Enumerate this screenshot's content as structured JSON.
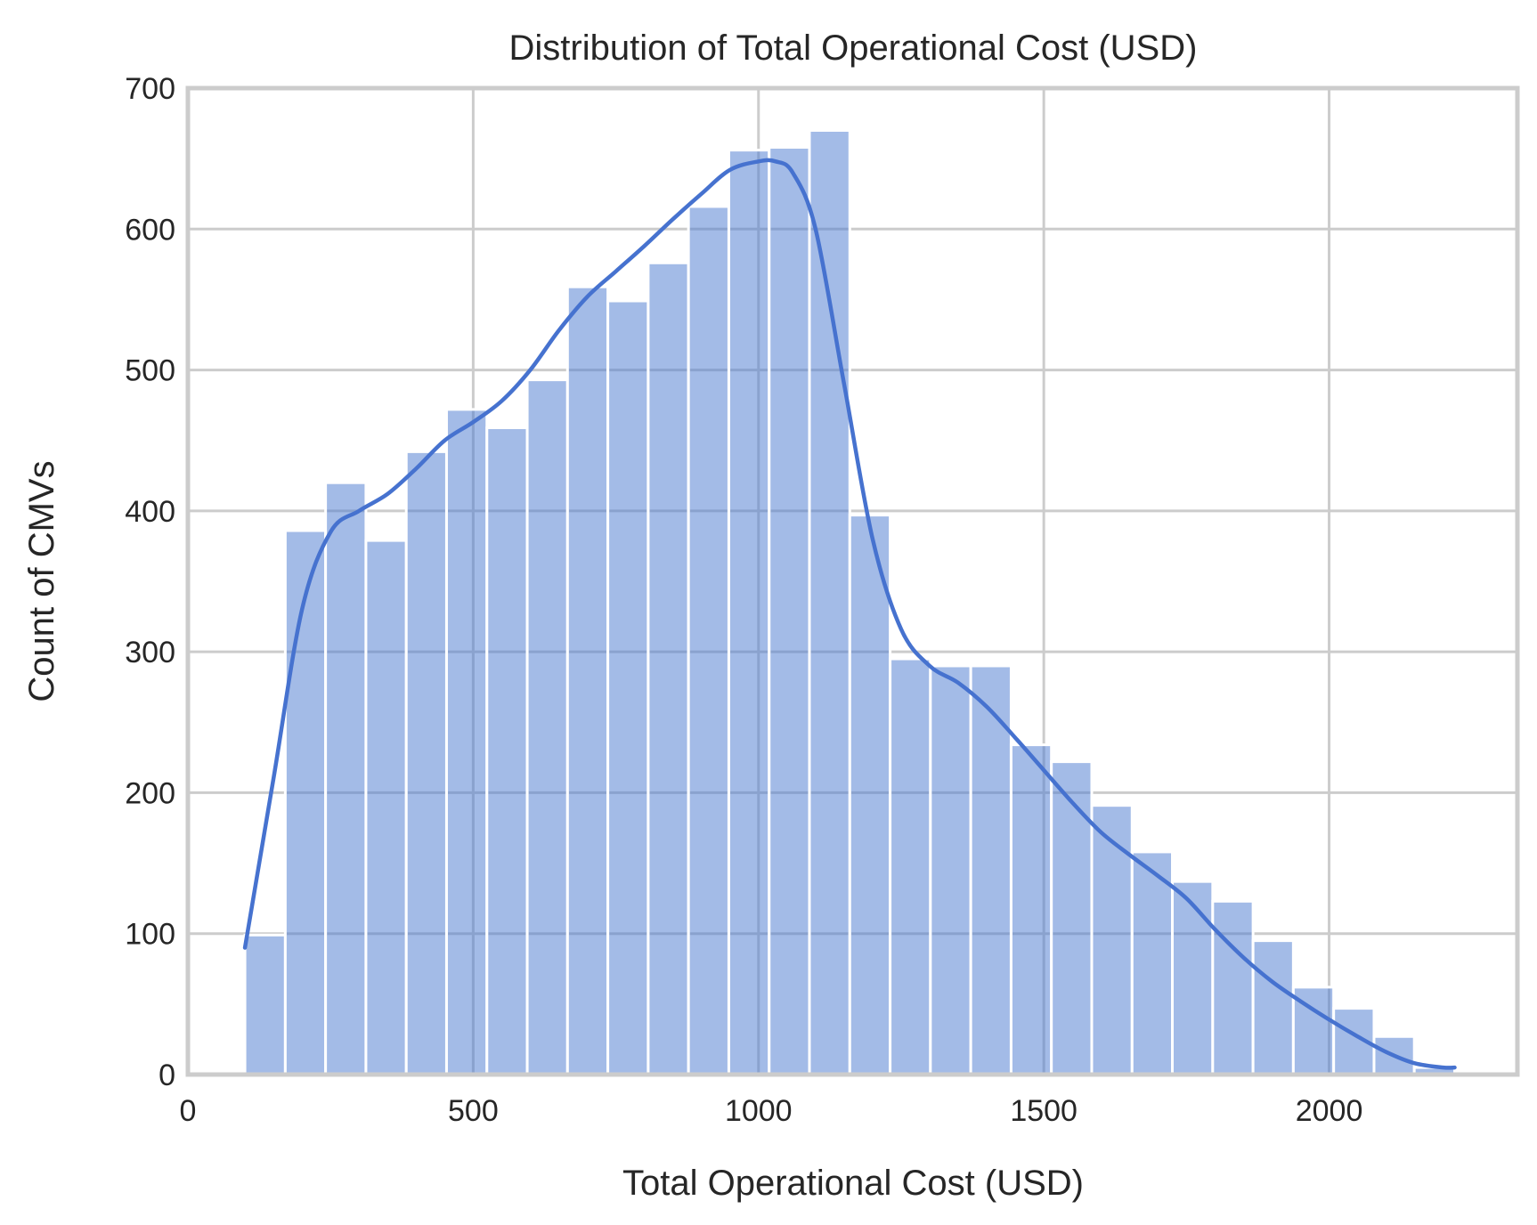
{
  "chart_data": {
    "type": "bar",
    "subtype": "histogram",
    "title": "Distribution of Total Operational Cost (USD)",
    "xlabel": "Total Operational Cost (USD)",
    "ylabel": "Count of CMVs",
    "xlim": [
      0,
      2330
    ],
    "ylim": [
      0,
      700
    ],
    "xticks": [
      0,
      500,
      1000,
      1500,
      2000
    ],
    "yticks": [
      0,
      100,
      200,
      300,
      400,
      500,
      600,
      700
    ],
    "grid": true,
    "bin_edges": [
      100,
      170.7,
      241.3,
      312,
      382.7,
      453.3,
      524,
      594.7,
      665.3,
      736,
      806.7,
      877.3,
      948,
      1018.7,
      1089.3,
      1160,
      1230.7,
      1301.3,
      1372,
      1442.7,
      1513.3,
      1584,
      1654.7,
      1725.3,
      1796,
      1866.7,
      1937.3,
      2008,
      2078.7,
      2149.3,
      2220
    ],
    "counts": [
      99,
      386,
      420,
      379,
      442,
      472,
      459,
      493,
      559,
      549,
      576,
      616,
      656,
      658,
      670,
      397,
      295,
      290,
      290,
      234,
      222,
      191,
      158,
      137,
      123,
      95,
      62,
      47,
      27,
      5
    ],
    "kde": {
      "x": [
        100,
        150,
        200,
        250,
        300,
        350,
        400,
        450,
        500,
        550,
        600,
        650,
        700,
        750,
        800,
        850,
        900,
        950,
        1000,
        1030,
        1060,
        1100,
        1150,
        1200,
        1250,
        1300,
        1350,
        1400,
        1450,
        1500,
        1550,
        1600,
        1650,
        1700,
        1750,
        1800,
        1850,
        1900,
        1950,
        2000,
        2050,
        2100,
        2150,
        2200,
        2220
      ],
      "y": [
        90,
        210,
        330,
        385,
        400,
        412,
        430,
        450,
        463,
        478,
        500,
        528,
        552,
        570,
        588,
        607,
        625,
        642,
        648,
        648,
        640,
        600,
        490,
        380,
        316,
        290,
        278,
        261,
        239,
        216,
        193,
        172,
        156,
        141,
        125,
        103,
        83,
        66,
        52,
        39,
        27,
        16,
        8,
        5,
        5
      ]
    },
    "colors": {
      "bar": "#4878d0",
      "kde": "#4672cf",
      "grid": "#cccccc",
      "text": "#262626"
    }
  }
}
